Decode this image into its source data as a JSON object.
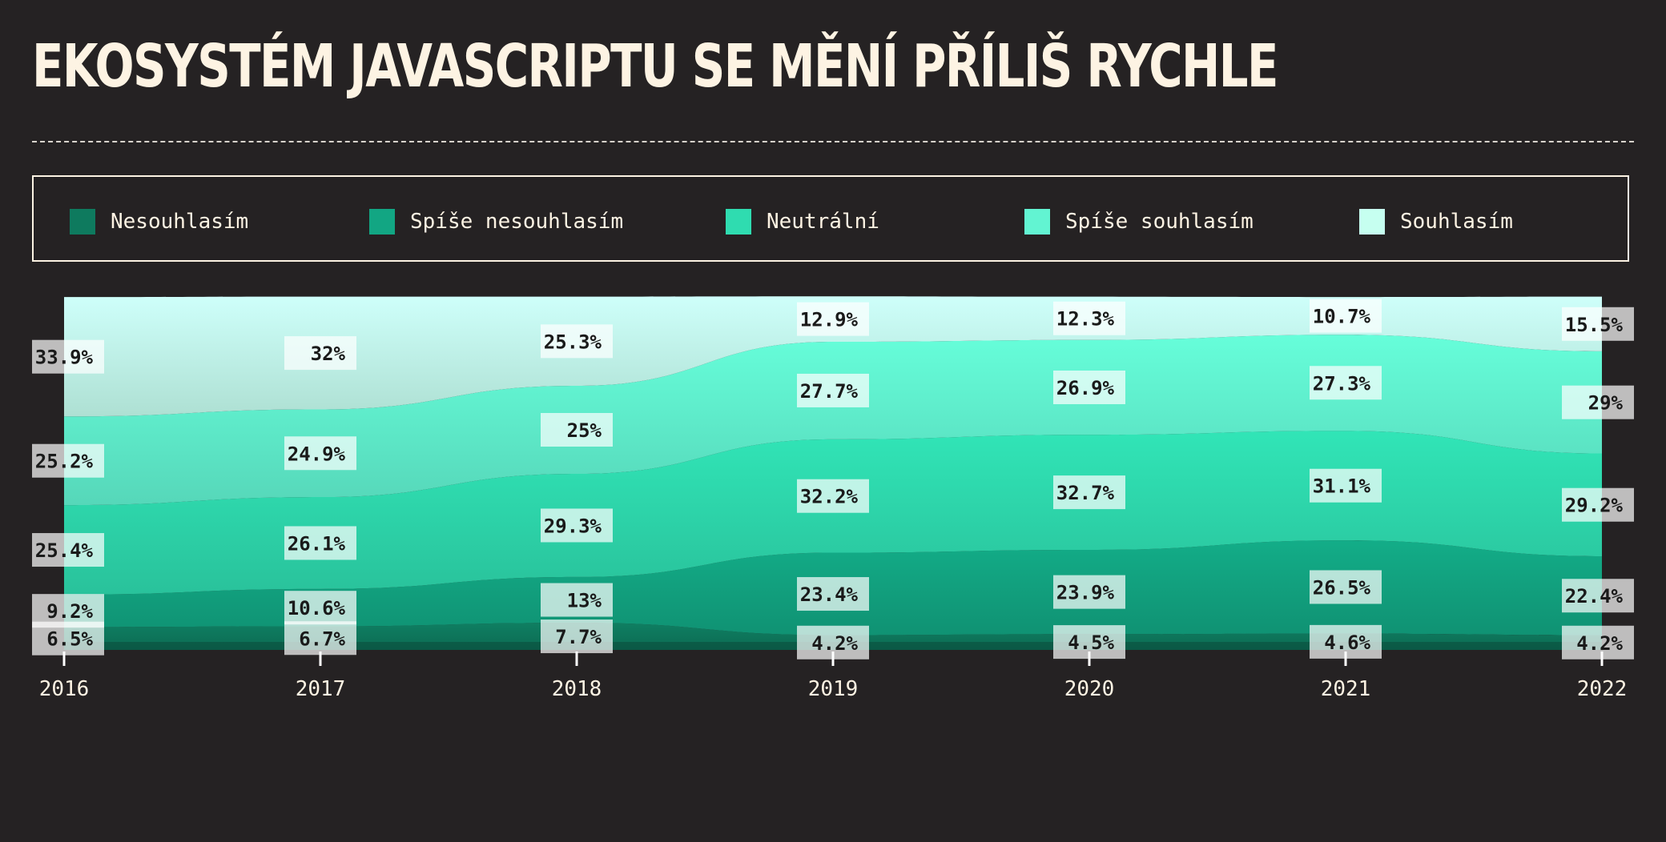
{
  "page": {
    "title": "EKOSYSTÉM JAVASCRIPTU SE MĚNÍ PŘÍLIŠ RYCHLE"
  },
  "legend": [
    {
      "label": "Nesouhlasím",
      "color": "#0e7a5e"
    },
    {
      "label": "Spíše nesouhlasím",
      "color": "#12a683"
    },
    {
      "label": "Neutrální",
      "color": "#2fdcb0"
    },
    {
      "label": "Spíše souhlasím",
      "color": "#62f4d2"
    },
    {
      "label": "Souhlasím",
      "color": "#c6fff0"
    }
  ],
  "chart_data": {
    "type": "area",
    "stacked": true,
    "normalized": true,
    "categories": [
      "2016",
      "2017",
      "2018",
      "2019",
      "2020",
      "2021",
      "2022"
    ],
    "series": [
      {
        "name": "Nesouhlasím",
        "color": "#0e7a5e",
        "values": [
          6.5,
          6.7,
          7.7,
          4.2,
          4.5,
          4.6,
          4.2
        ]
      },
      {
        "name": "Spíše nesouhlasím",
        "color": "#12a683",
        "values": [
          9.2,
          10.6,
          13,
          23.4,
          23.9,
          26.5,
          22.4
        ]
      },
      {
        "name": "Neutrální",
        "color": "#2fdcb0",
        "values": [
          25.4,
          26.1,
          29.3,
          32.2,
          32.7,
          31.1,
          29.2
        ]
      },
      {
        "name": "Spíše souhlasím",
        "color": "#62f4d2",
        "values": [
          25.2,
          24.9,
          25,
          27.7,
          26.9,
          27.3,
          29
        ]
      },
      {
        "name": "Souhlasím",
        "color": "#c6fff0",
        "values": [
          33.9,
          32,
          25.3,
          12.9,
          12.3,
          10.7,
          15.5
        ]
      }
    ],
    "data_labels": [
      [
        "6.5%",
        "6.7%",
        "7.7%",
        "4.2%",
        "4.5%",
        "4.6%",
        "4.2%"
      ],
      [
        "9.2%",
        "10.6%",
        "13%",
        "23.4%",
        "23.9%",
        "26.5%",
        "22.4%"
      ],
      [
        "25.4%",
        "26.1%",
        "29.3%",
        "32.2%",
        "32.7%",
        "31.1%",
        "29.2%"
      ],
      [
        "25.2%",
        "24.9%",
        "25%",
        "27.7%",
        "26.9%",
        "27.3%",
        "29%"
      ],
      [
        "33.9%",
        "32%",
        "25.3%",
        "12.9%",
        "12.3%",
        "10.7%",
        "15.5%"
      ]
    ],
    "ylim": [
      0,
      100
    ],
    "grid": false,
    "legend_position": "top"
  }
}
